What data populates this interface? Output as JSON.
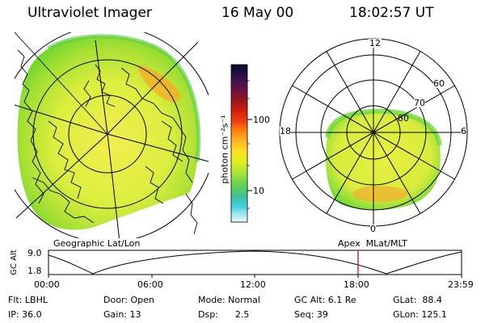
{
  "header": {
    "instrument": "Ultraviolet Imager",
    "date": "16 May 00",
    "time": "18:02:57 UT"
  },
  "colorbar": {
    "unit_label": "photon cm⁻²s⁻¹",
    "tick_labels": [
      "100",
      "10"
    ],
    "colors_top_to_bottom": [
      "#0a0a2a",
      "#301050",
      "#6a1040",
      "#a01818",
      "#d82010",
      "#f04010",
      "#ff8010",
      "#ffb020",
      "#ffe020",
      "#e0f020",
      "#a0e040",
      "#60d050",
      "#40c0a0",
      "#40d0e0",
      "#a0e8f0",
      "#e8f8ff"
    ]
  },
  "left_map": {
    "caption": "Geographic Lat/Lon",
    "fill_colors": {
      "outer": "#78d830",
      "mid": "#d8ec3a",
      "core": "#f2ee50",
      "warm": "#f4b028"
    }
  },
  "polar_plot": {
    "caption": "Apex  MLat/MLT",
    "mlt_labels": {
      "top": "12",
      "left": "18",
      "right": "6",
      "bottom": "0"
    },
    "lat_labels": [
      "60",
      "70",
      "80"
    ],
    "fill_colors": {
      "outer": "#70d838",
      "inner": "#eaf040",
      "warm": "#f2b030"
    }
  },
  "orbit": {
    "ylabel": "GC Alt",
    "y_ticks": [
      "9.0",
      "1.8"
    ],
    "x_ticks": [
      "00:00",
      "06:00",
      "12:00",
      "18:00",
      "23:59"
    ],
    "marker_color": "#c83030"
  },
  "meta": {
    "row1": {
      "flt": "Flt: LBHL",
      "door": "Door: Open",
      "mode": "Mode: Normal",
      "gcalt": "GC Alt: 6.1 Re",
      "glat": "GLat:  88.4"
    },
    "row2": {
      "ip": "IP: 36.0",
      "gain": "Gain: 13",
      "dsp": "Dsp:      2.5",
      "seq": "Seq: 39",
      "glon": "GLon: 125.1"
    }
  }
}
